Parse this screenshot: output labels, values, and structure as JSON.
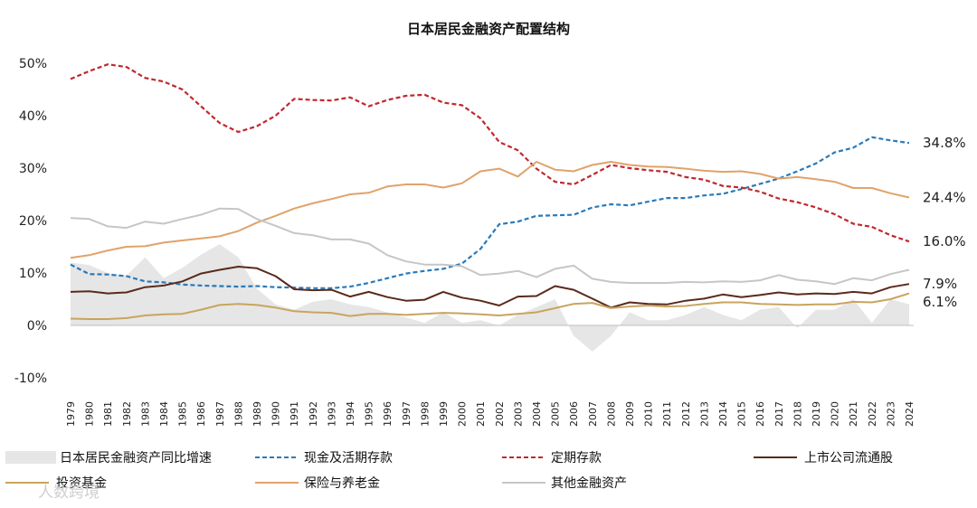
{
  "chart_data": {
    "type": "line",
    "title": "日本居民金融资产配置结构",
    "xlabel": "",
    "ylabel": "",
    "ylim": [
      -10,
      50
    ],
    "yticks": [
      50,
      40,
      30,
      20,
      10,
      0,
      -10
    ],
    "ytick_labels": [
      "50%",
      "40%",
      "30%",
      "20%",
      "10%",
      "0%",
      "-10%"
    ],
    "x": [
      1979,
      1980,
      1981,
      1982,
      1983,
      1984,
      1985,
      1986,
      1987,
      1988,
      1989,
      1990,
      1991,
      1992,
      1993,
      1994,
      1995,
      1996,
      1997,
      1998,
      1999,
      2000,
      2001,
      2002,
      2003,
      2004,
      2005,
      2006,
      2007,
      2008,
      2009,
      2010,
      2011,
      2012,
      2013,
      2014,
      2015,
      2016,
      2017,
      2018,
      2019,
      2020,
      2021,
      2022,
      2023,
      2024
    ],
    "x_labels": [
      "1979",
      "1980",
      "1981",
      "1982",
      "1983",
      "1984",
      "1985",
      "1986",
      "1987",
      "1988",
      "1989",
      "1990",
      "1991",
      "1992",
      "1993",
      "1994",
      "1995",
      "1996",
      "1997",
      "1998",
      "1999",
      "2000",
      "2001",
      "2002",
      "2003",
      "2004",
      "2005",
      "2006",
      "2007",
      "2008",
      "2009",
      "2010",
      "2011",
      "2012",
      "2013",
      "2014",
      "2015",
      "2016",
      "2017",
      "2018",
      "2019",
      "2020",
      "2021",
      "2022",
      "2023",
      "2024"
    ],
    "series": [
      {
        "name": "日本居民金融资产同比增速",
        "style": "area",
        "color": "#e6e6e6",
        "values": [
          12,
          11.5,
          10,
          9.5,
          13,
          9,
          11,
          13.5,
          15.5,
          13,
          7,
          4,
          3,
          4.5,
          5,
          4,
          3.5,
          2.5,
          1.5,
          0.5,
          2.5,
          0.5,
          1,
          0,
          2,
          3.5,
          5,
          -2,
          -5,
          -2,
          2.5,
          1,
          1,
          2,
          3.5,
          2,
          1,
          3,
          3.5,
          -0.5,
          3,
          3,
          5,
          0.5,
          5,
          4
        ]
      },
      {
        "name": "现金及活期存款",
        "style": "dashed",
        "color": "#2a7ab9",
        "values": [
          11.6,
          9.8,
          9.7,
          9.4,
          8.4,
          8.2,
          7.8,
          7.6,
          7.5,
          7.4,
          7.5,
          7.3,
          7.2,
          7.1,
          7.1,
          7.4,
          8.1,
          9.0,
          9.9,
          10.4,
          10.8,
          11.8,
          14.6,
          19.3,
          19.8,
          20.9,
          21.0,
          21.1,
          22.5,
          23.1,
          22.9,
          23.6,
          24.3,
          24.3,
          24.8,
          25.1,
          26.0,
          27.0,
          28.0,
          29.4,
          30.9,
          33.0,
          33.9,
          35.9,
          35.3,
          34.8
        ]
      },
      {
        "name": "定期存款",
        "style": "dashed",
        "color": "#c0282d",
        "values": [
          47.0,
          48.5,
          49.8,
          49.3,
          47.2,
          46.5,
          45.0,
          41.8,
          38.6,
          36.9,
          38.0,
          40.0,
          43.2,
          43.0,
          42.9,
          43.5,
          41.8,
          43.0,
          43.8,
          44.0,
          42.5,
          42.0,
          39.5,
          35.0,
          33.4,
          29.9,
          27.4,
          26.9,
          28.7,
          30.6,
          30.0,
          29.6,
          29.3,
          28.3,
          27.8,
          26.6,
          26.3,
          25.5,
          24.2,
          23.5,
          22.5,
          21.2,
          19.4,
          18.8,
          17.2,
          16.0
        ]
      },
      {
        "name": "上市公司流通股",
        "style": "solid",
        "color": "#5a2a1c",
        "values": [
          6.4,
          6.5,
          6.1,
          6.3,
          7.3,
          7.6,
          8.4,
          9.9,
          10.6,
          11.2,
          10.9,
          9.4,
          6.9,
          6.7,
          6.8,
          5.5,
          6.4,
          5.4,
          4.7,
          4.9,
          6.4,
          5.3,
          4.7,
          3.8,
          5.5,
          5.6,
          7.5,
          6.8,
          5.1,
          3.4,
          4.4,
          4.1,
          4.0,
          4.7,
          5.1,
          5.9,
          5.4,
          5.8,
          6.3,
          5.9,
          6.1,
          6.0,
          6.4,
          6.1,
          7.3,
          7.9
        ]
      },
      {
        "name": "投资基金",
        "style": "solid",
        "color": "#c9a45e",
        "values": [
          1.3,
          1.2,
          1.2,
          1.4,
          1.9,
          2.1,
          2.2,
          3.0,
          3.9,
          4.1,
          3.9,
          3.4,
          2.7,
          2.5,
          2.4,
          1.8,
          2.2,
          2.2,
          2.0,
          2.2,
          2.4,
          2.3,
          2.1,
          1.9,
          2.2,
          2.5,
          3.3,
          4.1,
          4.3,
          3.3,
          3.6,
          3.8,
          3.6,
          3.7,
          4.1,
          4.4,
          4.4,
          4.1,
          4.0,
          3.9,
          4.0,
          4.0,
          4.5,
          4.4,
          5.0,
          6.1
        ]
      },
      {
        "name": "保险与养老金",
        "style": "solid",
        "color": "#e0a36a",
        "values": [
          12.9,
          13.4,
          14.3,
          15.0,
          15.1,
          15.8,
          16.2,
          16.6,
          17.0,
          18.0,
          19.6,
          20.9,
          22.3,
          23.3,
          24.1,
          25.0,
          25.3,
          26.5,
          26.9,
          26.9,
          26.3,
          27.1,
          29.4,
          29.9,
          28.4,
          31.2,
          29.7,
          29.4,
          30.6,
          31.2,
          30.6,
          30.3,
          30.2,
          29.9,
          29.5,
          29.3,
          29.4,
          28.9,
          28.0,
          28.3,
          27.9,
          27.4,
          26.2,
          26.2,
          25.2,
          24.4
        ]
      },
      {
        "name": "其他金融资产",
        "style": "solid",
        "color": "#c6c6c6",
        "values": [
          20.5,
          20.3,
          18.9,
          18.6,
          19.8,
          19.4,
          20.3,
          21.1,
          22.3,
          22.2,
          20.3,
          19.0,
          17.6,
          17.2,
          16.4,
          16.4,
          15.6,
          13.4,
          12.2,
          11.6,
          11.6,
          11.3,
          9.6,
          9.9,
          10.4,
          9.2,
          10.8,
          11.4,
          8.9,
          8.3,
          8.1,
          8.1,
          8.1,
          8.3,
          8.2,
          8.4,
          8.3,
          8.6,
          9.6,
          8.7,
          8.4,
          7.9,
          9.0,
          8.6,
          9.8,
          10.6
        ]
      }
    ],
    "end_labels": [
      {
        "series": 1,
        "text": "34.8%"
      },
      {
        "series": 5,
        "text": "24.4%"
      },
      {
        "series": 2,
        "text": "16.0%"
      },
      {
        "series": 3,
        "text": "7.9%"
      },
      {
        "series": 4,
        "text": "6.1%"
      }
    ],
    "legend": {
      "placement": "bottom",
      "entries": [
        "日本居民金融资产同比增速",
        "现金及活期存款",
        "定期存款",
        "上市公司流通股",
        "投资基金",
        "保险与养老金",
        "其他金融资产"
      ]
    },
    "grid": false
  },
  "watermark": "人数跨境"
}
